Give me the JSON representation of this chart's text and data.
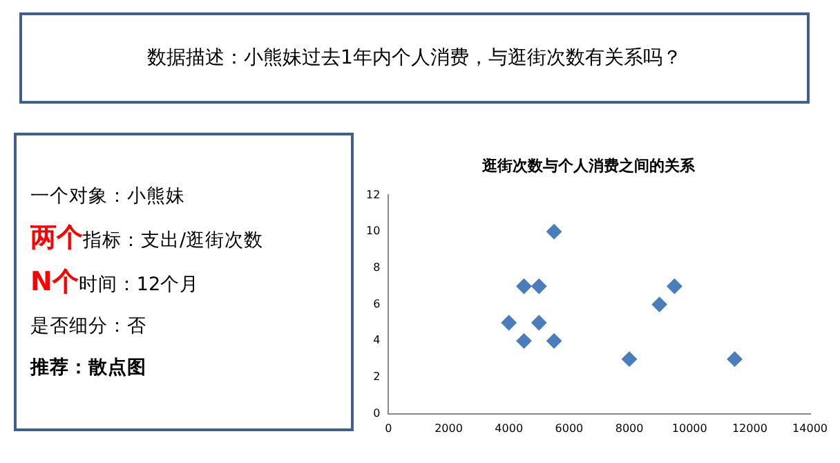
{
  "chart_data": [
    {
      "type": "other",
      "title": "数据描述：小熊妹过去1年内个人消费，与逛街次数有关系吗？",
      "annotations": [
        "一个对象：小熊妹",
        "两个",
        "指标：支出/逛街次数",
        "N个",
        "时间：12个月",
        "是否细分：否",
        "推荐：散点图"
      ]
    },
    {
      "type": "scatter",
      "title": "逛街次数与个人消费之间的关系",
      "color": "#4a7ebb",
      "marker": "diamond",
      "grid": false,
      "legend": false,
      "x": [
        4000,
        4500,
        4500,
        5000,
        5000,
        5500,
        5500,
        8000,
        9000,
        9500,
        11500
      ],
      "values": [
        5,
        7,
        4,
        7,
        5,
        10,
        4,
        3,
        6,
        7,
        3
      ],
      "xlim": [
        0,
        14000
      ],
      "xticks": [
        0,
        2000,
        4000,
        6000,
        8000,
        10000,
        12000,
        14000
      ],
      "ylim": [
        0,
        12
      ],
      "yticks": [
        0,
        2,
        4,
        6,
        8,
        10,
        12
      ]
    }
  ]
}
